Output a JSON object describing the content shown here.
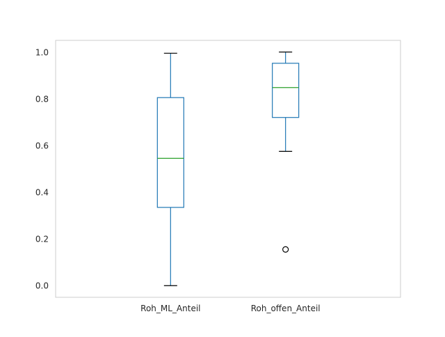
{
  "chart_data": {
    "type": "box",
    "title": "",
    "xlabel": "",
    "ylabel": "",
    "ylim": [
      -0.05,
      1.05
    ],
    "grid": false,
    "yticks": [
      "0.0",
      "0.2",
      "0.4",
      "0.6",
      "0.8",
      "1.0"
    ],
    "categories": [
      "Roh_ML_Anteil",
      "Roh_offen_Anteil"
    ],
    "boxes": [
      {
        "name": "Roh_ML_Anteil",
        "whisker_low": 0.0,
        "q1": 0.335,
        "median": 0.545,
        "q3": 0.805,
        "whisker_high": 0.995,
        "outliers": []
      },
      {
        "name": "Roh_offen_Anteil",
        "whisker_low": 0.575,
        "q1": 0.72,
        "median": 0.848,
        "q3": 0.952,
        "whisker_high": 1.0,
        "outliers": [
          0.155
        ]
      }
    ],
    "colors": {
      "box": "#1f77b4",
      "median": "#2ca02c",
      "whisker_cap": "#000000",
      "outlier": "#000000",
      "frame": "#cccccc",
      "text": "#262626"
    }
  }
}
